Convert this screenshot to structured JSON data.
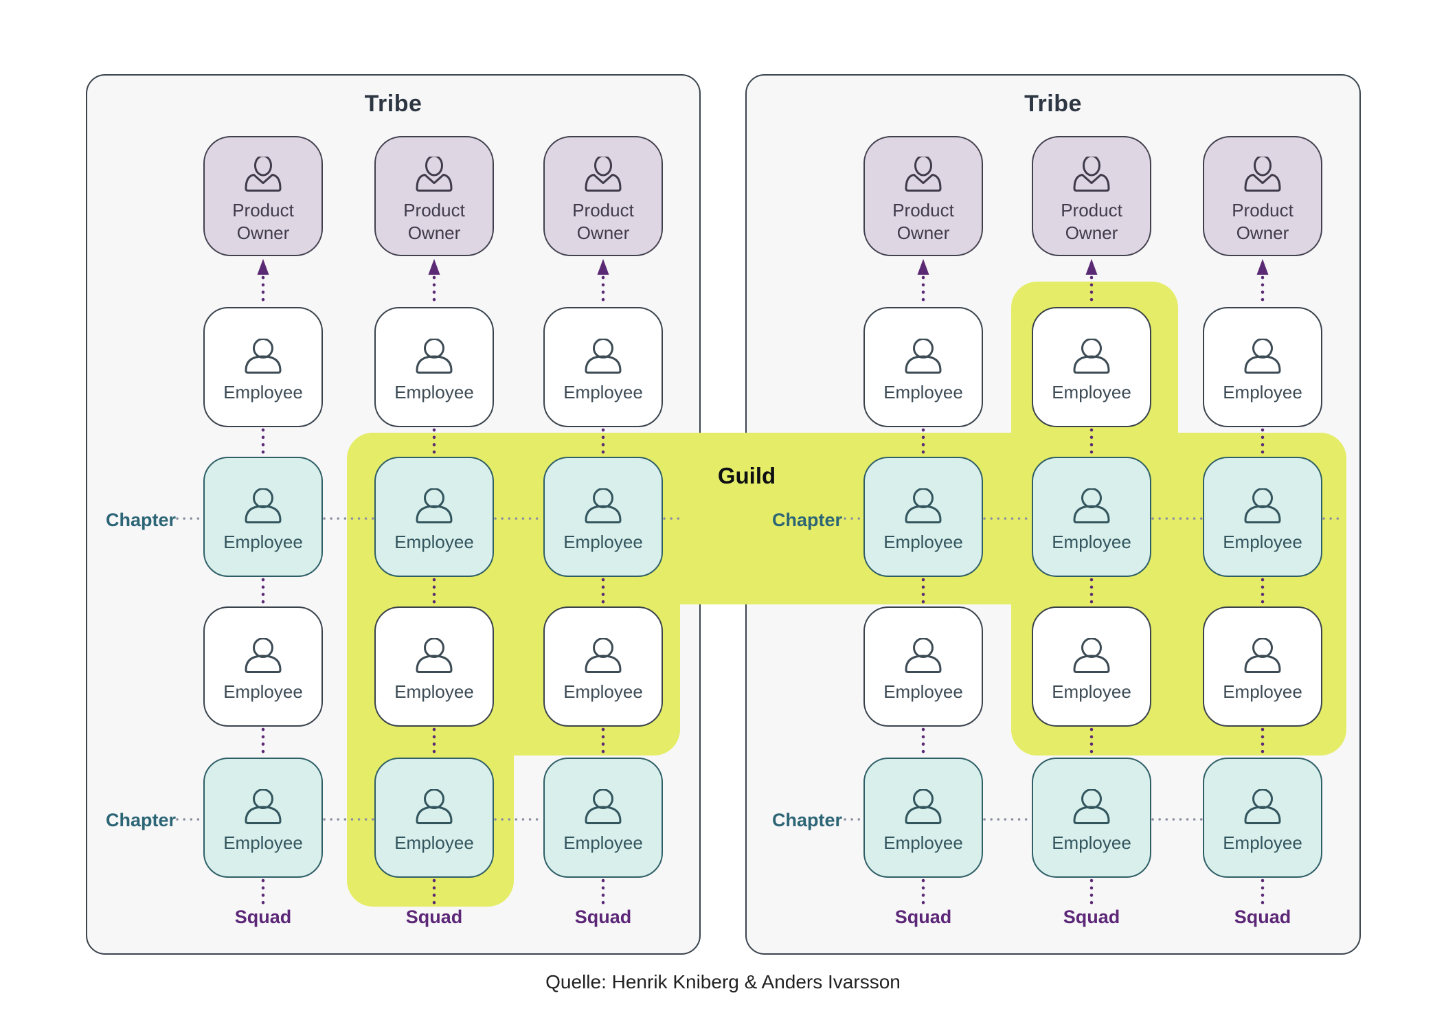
{
  "labels": {
    "guild": "Guild",
    "product_owner": "Product Owner",
    "employee": "Employee",
    "caption": "Quelle: Henrik Kniberg & Anders Ivarsson"
  },
  "structure": {
    "tribes": [
      {
        "title": "Tribe",
        "chapter_labels": [
          "Chapter",
          "Chapter"
        ],
        "squad_labels": [
          "Squad",
          "Squad",
          "Squad"
        ],
        "columns": [
          {
            "card_types": [
              "po",
              "white",
              "teal",
              "white",
              "teal"
            ],
            "guild_rows": []
          },
          {
            "card_types": [
              "po",
              "white",
              "teal",
              "white",
              "teal"
            ],
            "guild_rows": [
              2,
              3,
              4
            ]
          },
          {
            "card_types": [
              "po",
              "white",
              "teal",
              "white",
              "teal"
            ],
            "guild_rows": [
              2,
              3
            ]
          }
        ]
      },
      {
        "title": "Tribe",
        "chapter_labels": [
          "Chapter",
          "Chapter"
        ],
        "squad_labels": [
          "Squad",
          "Squad",
          "Squad"
        ],
        "columns": [
          {
            "card_types": [
              "po",
              "white",
              "teal",
              "white",
              "teal"
            ],
            "guild_rows": []
          },
          {
            "card_types": [
              "po",
              "white",
              "teal",
              "white",
              "teal"
            ],
            "guild_rows": [
              1,
              2,
              3
            ]
          },
          {
            "card_types": [
              "po",
              "white",
              "teal",
              "white",
              "teal"
            ],
            "guild_rows": [
              2,
              3
            ]
          }
        ]
      }
    ],
    "guild_note": "Guild highlight spans selected squad members in both tribes, connected by a band through the first chapter row"
  },
  "colors": {
    "background": "#ffffff",
    "tribe_fill": "#f7f7f8",
    "outline_dark": "#3a434c",
    "guild_highlight": "#e5ed68",
    "product_owner_fill": "#ded6e2",
    "product_owner_border": "#42404e",
    "product_owner_text": "#3f3b4b",
    "chapter_card_fill": "#d9efec",
    "chapter_card_border": "#2e5f66",
    "chapter_card_text": "#33555e",
    "white_card_text": "#3d4b55",
    "purple_accent": "#5b2a74",
    "chapter_label_color": "#2c6575",
    "squad_label_color": "#5c2777",
    "guild_label_color": "#0d0f12",
    "tribe_label_color": "#2d3642",
    "caption_color": "#212121",
    "chapter_line_color": "#8b90a0"
  }
}
